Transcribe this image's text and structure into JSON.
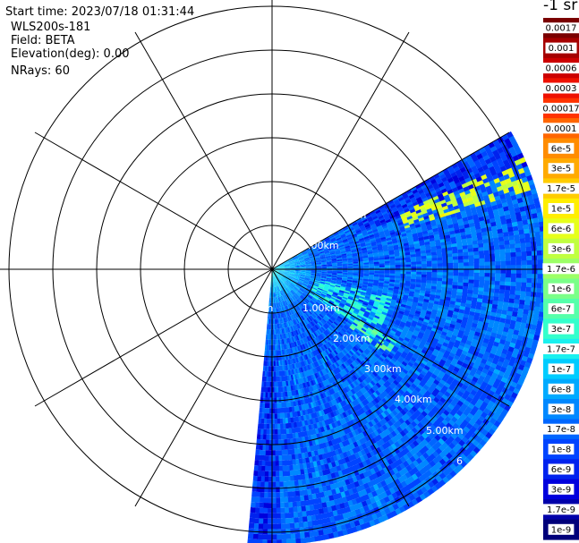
{
  "header": {
    "start_time": "Start time: 2023/07/18 01:31:44",
    "instrument": "WLS200s-181",
    "field": "Field: BETA",
    "elevation": "Elevation(deg): 0.00",
    "nrays": "NRays: 60"
  },
  "colorbar": {
    "unit_label": "-1 sr",
    "tick_labels": [
      "0.0017",
      "0.001",
      "0.0006",
      "0.0003",
      "0.00017",
      "0.0001",
      "6e-5",
      "3e-5",
      "1.7e-5",
      "1e-5",
      "6e-6",
      "3e-6",
      "1.7e-6",
      "1e-6",
      "6e-7",
      "3e-7",
      "1.7e-7",
      "1e-7",
      "6e-8",
      "3e-8",
      "1.7e-8",
      "1e-8",
      "6e-9",
      "3e-9",
      "1.7e-9",
      "1e-9"
    ],
    "colors": [
      "#7a0000",
      "#a50000",
      "#cc0000",
      "#ee1100",
      "#ff3300",
      "#ff6600",
      "#ff8c00",
      "#ffaa00",
      "#ffcc00",
      "#ffee00",
      "#e6ff1a",
      "#c0ff40",
      "#9cff66",
      "#7aff88",
      "#55ffaa",
      "#33ffcc",
      "#1af0ee",
      "#00ccff",
      "#00aaff",
      "#0088ff",
      "#0066ff",
      "#0044ff",
      "#0022ee",
      "#0000dd",
      "#0000aa",
      "#00007a"
    ]
  },
  "chart_data": {
    "type": "heatmap",
    "projection": "polar PPI scan",
    "range_ring_labels": [
      "1.00km",
      "2.00km",
      "3.00km",
      "4.00km",
      "5.00km",
      "6"
    ],
    "clipped_range_labels": [
      "rn",
      "rn",
      ".00km"
    ],
    "range_rings_km": [
      1,
      2,
      3,
      4,
      5,
      6
    ],
    "max_range_km": 6,
    "spoke_interval_deg": 30,
    "scan_sector_deg": [
      60,
      185
    ],
    "value_scale": "log10",
    "value_range": [
      1e-09,
      0.0017
    ],
    "background_log10": -7.7,
    "features": [
      {
        "range_km": [
          3.1,
          6.2
        ],
        "azimuth_deg": [
          66,
          72
        ],
        "log10": -5.4
      },
      {
        "range_km": [
          1.0,
          2.8
        ],
        "azimuth_deg": [
          103,
          123
        ],
        "log10": -6.6
      },
      {
        "range_km": [
          2.2,
          3.2
        ],
        "azimuth_deg": [
          120,
          126
        ],
        "log10": -6.2
      }
    ]
  }
}
